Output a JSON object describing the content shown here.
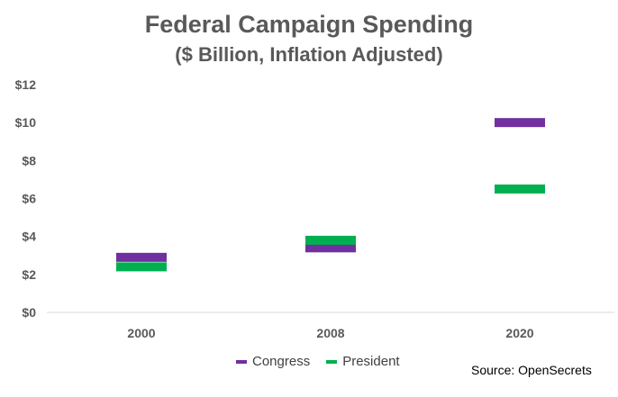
{
  "chart_data": {
    "type": "scatter",
    "title": "Federal Campaign Spending",
    "subtitle": "($ Billion, Inflation Adjusted)",
    "xlabel": "",
    "ylabel": "",
    "categories": [
      "2000",
      "2008",
      "2020"
    ],
    "ylim": [
      0,
      12
    ],
    "yticks": [
      "$0",
      "$2",
      "$4",
      "$6",
      "$8",
      "$10",
      "$12"
    ],
    "ytick_values": [
      0,
      2,
      4,
      6,
      8,
      10,
      12
    ],
    "grid": false,
    "legend_position": "bottom",
    "marker": "dash",
    "series": [
      {
        "name": "Congress",
        "color": "#7030A0",
        "values": [
          2.9,
          3.4,
          10.0
        ]
      },
      {
        "name": "President",
        "color": "#00B050",
        "values": [
          2.4,
          3.8,
          6.5
        ]
      }
    ],
    "source": "Source: OpenSecrets"
  }
}
